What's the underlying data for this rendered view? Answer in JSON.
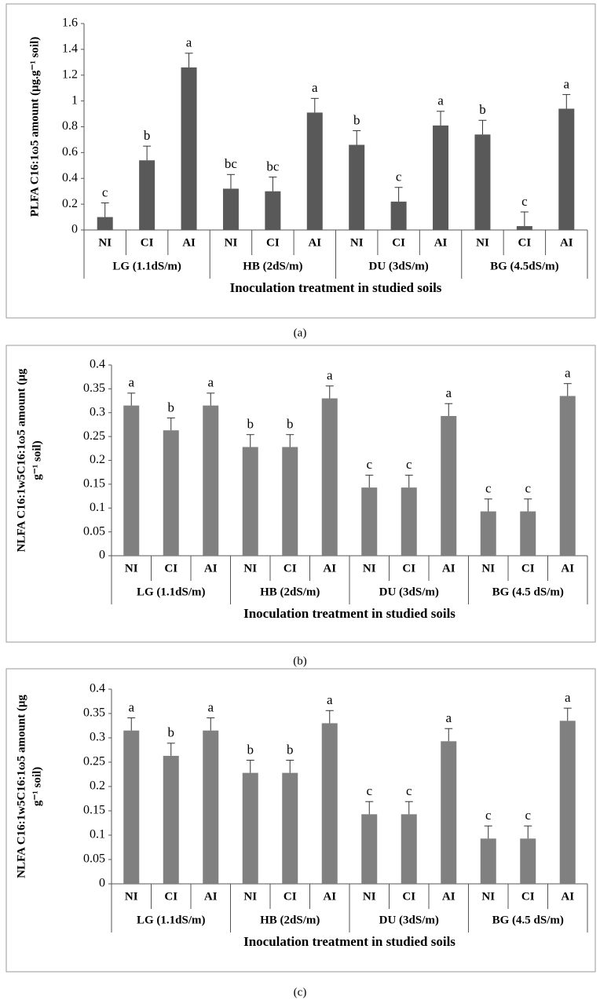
{
  "chart_data": [
    {
      "type": "bar",
      "panel": "(a)",
      "color": "#595959",
      "y_label": [
        "PLFA  C16:1ω5 amount (μg.g⁻¹ soil)"
      ],
      "x_label": "Inoculation treatment in studied soils",
      "groups": [
        "LG (1.1dS/m)",
        "HB (2dS/m)",
        "DU (3dS/m)",
        "BG (4.5dS/m)"
      ],
      "categories": [
        "NI",
        "CI",
        "AI",
        "NI",
        "CI",
        "AI",
        "NI",
        "CI",
        "AI",
        "NI",
        "CI",
        "AI"
      ],
      "values": [
        0.1,
        0.54,
        1.26,
        0.32,
        0.3,
        0.91,
        0.66,
        0.22,
        0.81,
        0.74,
        0.03,
        0.94
      ],
      "errors": [
        0.11,
        0.11,
        0.11,
        0.11,
        0.11,
        0.11,
        0.11,
        0.11,
        0.11,
        0.11,
        0.11,
        0.11
      ],
      "significance": [
        "c",
        "b",
        "a",
        "bc",
        "bc",
        "a",
        "b",
        "c",
        "a",
        "b",
        "c",
        "a"
      ],
      "ylim": [
        0,
        1.6
      ],
      "yticks": [
        0,
        0.2,
        0.4,
        0.6,
        0.8,
        1,
        1.2,
        1.4,
        1.6
      ]
    },
    {
      "type": "bar",
      "panel": "(b)",
      "color": "#808080",
      "y_label": [
        "NLFA C16:1w5C16:1ω5 amount (μg",
        "g⁻¹ soil)"
      ],
      "x_label": "Inoculation treatment in studied soils",
      "groups": [
        "LG (1.1dS/m)",
        "HB (2dS/m)",
        "DU (3dS/m)",
        "BG (4.5 dS/m)"
      ],
      "categories": [
        "NI",
        "CI",
        "AI",
        "NI",
        "CI",
        "AI",
        "NI",
        "CI",
        "AI",
        "NI",
        "CI",
        "AI"
      ],
      "values": [
        0.315,
        0.263,
        0.315,
        0.228,
        0.228,
        0.33,
        0.143,
        0.143,
        0.293,
        0.093,
        0.093,
        0.335
      ],
      "errors": [
        0.026,
        0.026,
        0.026,
        0.026,
        0.026,
        0.026,
        0.026,
        0.026,
        0.026,
        0.026,
        0.026,
        0.026
      ],
      "significance": [
        "a",
        "b",
        "a",
        "b",
        "b",
        "a",
        "c",
        "c",
        "a",
        "c",
        "c",
        "a"
      ],
      "ylim": [
        0,
        0.4
      ],
      "yticks": [
        0,
        0.05,
        0.1,
        0.15,
        0.2,
        0.25,
        0.3,
        0.35,
        0.4
      ]
    },
    {
      "type": "bar",
      "panel": "(c)",
      "color": "#808080",
      "y_label": [
        "NLFA C16:1w5C16:1ω5 amount (μg",
        "g⁻¹ soil)"
      ],
      "x_label": "Inoculation treatment in studied soils",
      "groups": [
        "LG (1.1dS/m)",
        "HB (2dS/m)",
        "DU (3dS/m)",
        "BG (4.5 dS/m)"
      ],
      "categories": [
        "NI",
        "CI",
        "AI",
        "NI",
        "CI",
        "AI",
        "NI",
        "CI",
        "AI",
        "NI",
        "CI",
        "AI"
      ],
      "values": [
        0.315,
        0.263,
        0.315,
        0.228,
        0.228,
        0.33,
        0.143,
        0.143,
        0.293,
        0.093,
        0.093,
        0.335
      ],
      "errors": [
        0.026,
        0.026,
        0.026,
        0.026,
        0.026,
        0.026,
        0.026,
        0.026,
        0.026,
        0.026,
        0.026,
        0.026
      ],
      "significance": [
        "a",
        "b",
        "a",
        "b",
        "b",
        "a",
        "c",
        "c",
        "a",
        "c",
        "c",
        "a"
      ],
      "ylim": [
        0,
        0.4
      ],
      "yticks": [
        0,
        0.05,
        0.1,
        0.15,
        0.2,
        0.25,
        0.3,
        0.35,
        0.4
      ]
    }
  ]
}
